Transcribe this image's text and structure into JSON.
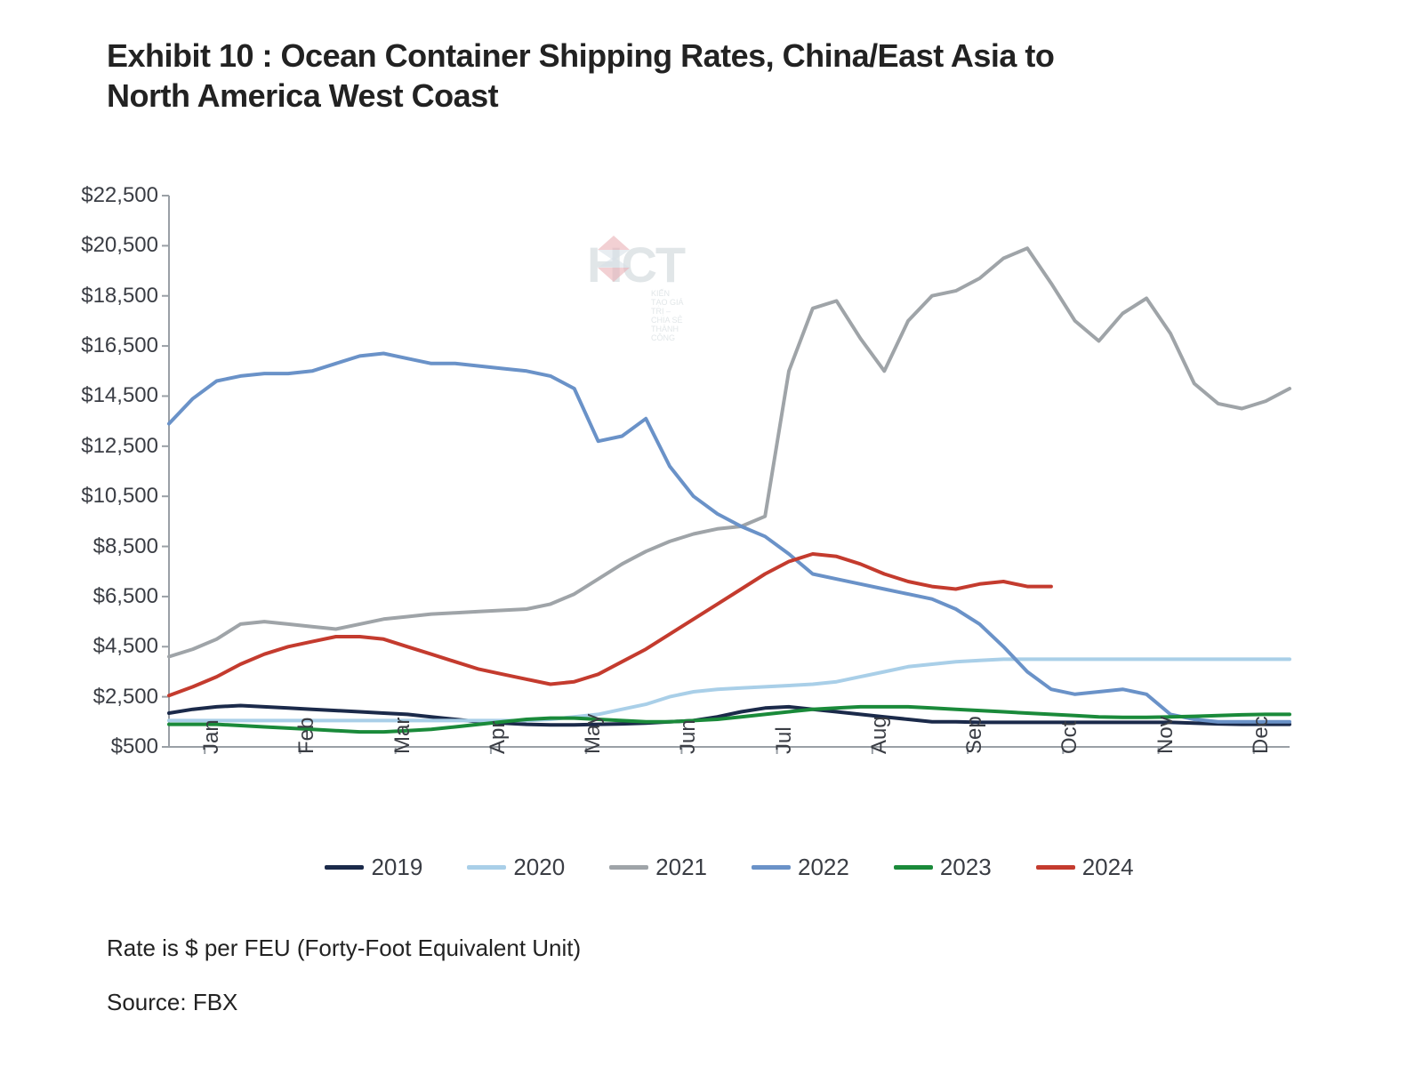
{
  "title": "Exhibit 10 : Ocean Container Shipping Rates, China/East Asia to North America West Coast",
  "footnote1": "Rate is $ per FEU (Forty-Foot Equivalent Unit)",
  "footnote2": "Source: FBX",
  "watermark_text": "HCT",
  "watermark_sub": "KIẾN TẠO GIÁ TRỊ – CHIA SẺ THÀNH CÔNG",
  "chart": {
    "type": "line",
    "background_color": "#ffffff",
    "axis_color": "#9aa0a6",
    "tick_color": "#9aa0a6",
    "line_width": 4,
    "label_fontsize": 24,
    "label_color": "#3a3d44",
    "y": {
      "min": 500,
      "max": 22500,
      "step": 2000,
      "prefix": "$",
      "format_thousands": true
    },
    "x": {
      "categories": [
        "Jan",
        "Feb",
        "Mar",
        "Apr",
        "May",
        "Jun",
        "Jul",
        "Aug",
        "Sep",
        "Oct",
        "Nov",
        "Dec"
      ],
      "points_per_category": 4
    },
    "series": [
      {
        "name": "2019",
        "color": "#1b2a4a",
        "values": [
          1850,
          2000,
          2100,
          2150,
          2100,
          2050,
          2000,
          1950,
          1900,
          1850,
          1800,
          1700,
          1600,
          1500,
          1450,
          1400,
          1380,
          1380,
          1400,
          1420,
          1450,
          1500,
          1550,
          1700,
          1900,
          2050,
          2100,
          2000,
          1900,
          1800,
          1700,
          1600,
          1500,
          1500,
          1480,
          1480,
          1480,
          1480,
          1480,
          1480,
          1480,
          1480,
          1480,
          1450,
          1420,
          1400,
          1400,
          1400
        ]
      },
      {
        "name": "2020",
        "color": "#a9cfe8",
        "values": [
          1550,
          1550,
          1550,
          1550,
          1550,
          1550,
          1550,
          1550,
          1550,
          1550,
          1550,
          1550,
          1550,
          1550,
          1550,
          1550,
          1600,
          1700,
          1800,
          2000,
          2200,
          2500,
          2700,
          2800,
          2850,
          2900,
          2950,
          3000,
          3100,
          3300,
          3500,
          3700,
          3800,
          3900,
          3950,
          4000,
          4000,
          4000,
          4000,
          4000,
          4000,
          4000,
          4000,
          4000,
          4000,
          4000,
          4000,
          4000
        ]
      },
      {
        "name": "2021",
        "color": "#9fa4a8",
        "values": [
          4100,
          4400,
          4800,
          5400,
          5500,
          5400,
          5300,
          5200,
          5400,
          5600,
          5700,
          5800,
          5850,
          5900,
          5950,
          6000,
          6200,
          6600,
          7200,
          7800,
          8300,
          8700,
          9000,
          9200,
          9300,
          9700,
          15500,
          18000,
          18300,
          16800,
          15500,
          17500,
          18500,
          18700,
          19200,
          20000,
          20400,
          19000,
          17500,
          16700,
          17800,
          18400,
          17000,
          15000,
          14200,
          14000,
          14300,
          14800
        ]
      },
      {
        "name": "2022",
        "color": "#6a92c8",
        "values": [
          13400,
          14400,
          15100,
          15300,
          15400,
          15400,
          15500,
          15800,
          16100,
          16200,
          16000,
          15800,
          15800,
          15700,
          15600,
          15500,
          15300,
          14800,
          12700,
          12900,
          13600,
          11700,
          10500,
          9800,
          9300,
          8900,
          8200,
          7400,
          7200,
          7000,
          6800,
          6600,
          6400,
          6000,
          5400,
          4500,
          3500,
          2800,
          2600,
          2700,
          2800,
          2600,
          1800,
          1600,
          1500,
          1500,
          1500,
          1500
        ]
      },
      {
        "name": "2023",
        "color": "#1a8a3a",
        "values": [
          1400,
          1400,
          1400,
          1350,
          1300,
          1250,
          1200,
          1150,
          1100,
          1100,
          1150,
          1200,
          1300,
          1400,
          1500,
          1600,
          1650,
          1650,
          1600,
          1550,
          1500,
          1500,
          1550,
          1600,
          1700,
          1800,
          1900,
          2000,
          2050,
          2100,
          2100,
          2100,
          2050,
          2000,
          1950,
          1900,
          1850,
          1800,
          1750,
          1700,
          1680,
          1680,
          1700,
          1720,
          1750,
          1780,
          1800,
          1800
        ]
      },
      {
        "name": "2024",
        "color": "#c43b2e",
        "values": [
          2550,
          2900,
          3300,
          3800,
          4200,
          4500,
          4700,
          4900,
          4900,
          4800,
          4500,
          4200,
          3900,
          3600,
          3400,
          3200,
          3000,
          3100,
          3400,
          3900,
          4400,
          5000,
          5600,
          6200,
          6800,
          7400,
          7900,
          8200,
          8100,
          7800,
          7400,
          7100,
          6900,
          6800,
          7000,
          7100,
          6900,
          6900
        ]
      }
    ]
  }
}
